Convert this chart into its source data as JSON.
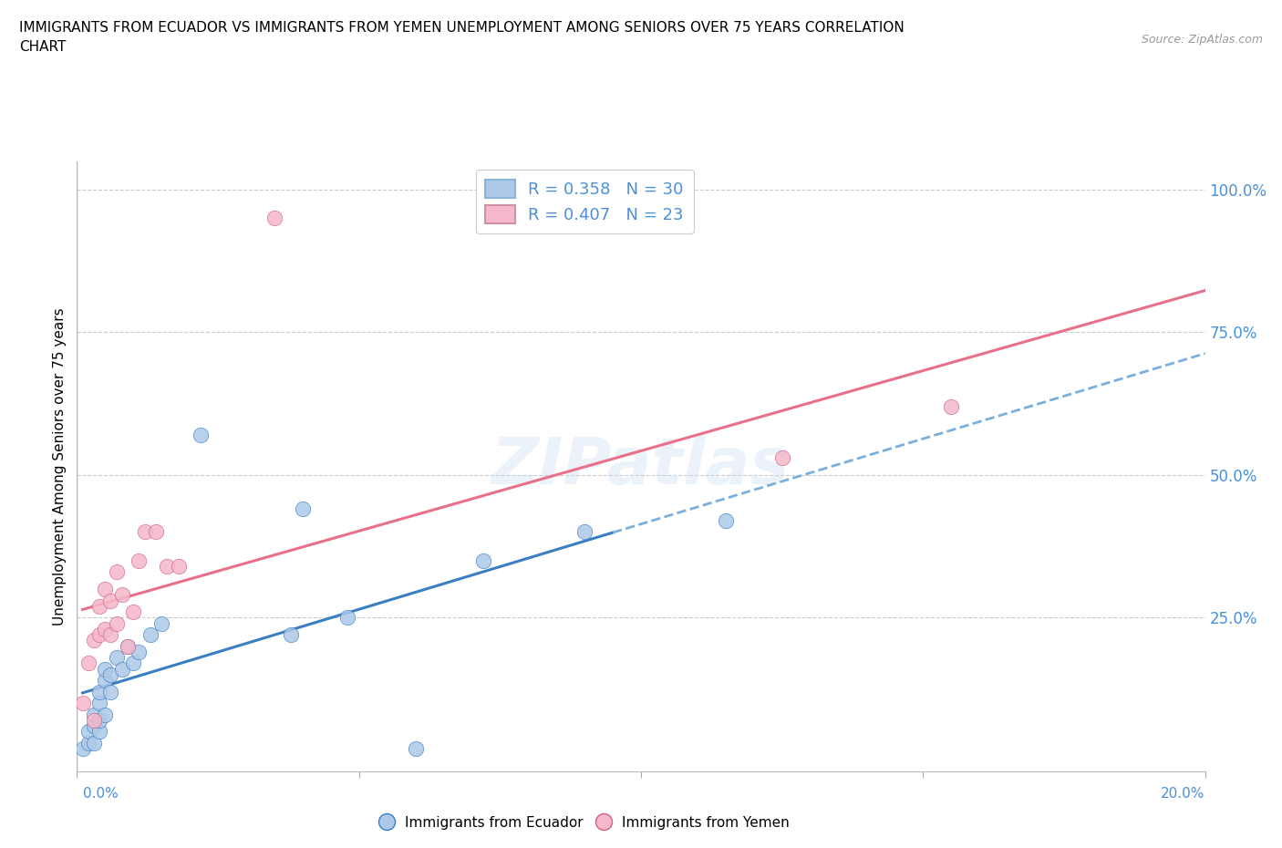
{
  "title_line1": "IMMIGRANTS FROM ECUADOR VS IMMIGRANTS FROM YEMEN UNEMPLOYMENT AMONG SENIORS OVER 75 YEARS CORRELATION",
  "title_line2": "CHART",
  "source": "Source: ZipAtlas.com",
  "ylabel": "Unemployment Among Seniors over 75 years",
  "legend_ecuador": "R = 0.358   N = 30",
  "legend_yemen": "R = 0.407   N = 23",
  "ecuador_color": "#adc8e8",
  "yemen_color": "#f5b8cb",
  "ecuador_line_color": "#3a7fc1",
  "yemen_line_color": "#e8708a",
  "dashed_line_color": "#7ab0de",
  "xlim": [
    0.0,
    0.2
  ],
  "ylim": [
    -0.02,
    1.05
  ],
  "ecuador_scatter_x": [
    0.001,
    0.002,
    0.002,
    0.003,
    0.003,
    0.003,
    0.004,
    0.004,
    0.004,
    0.004,
    0.005,
    0.005,
    0.005,
    0.006,
    0.006,
    0.007,
    0.008,
    0.009,
    0.01,
    0.011,
    0.013,
    0.015,
    0.022,
    0.038,
    0.04,
    0.048,
    0.06,
    0.072,
    0.09,
    0.115
  ],
  "ecuador_scatter_y": [
    0.02,
    0.03,
    0.05,
    0.03,
    0.06,
    0.08,
    0.05,
    0.07,
    0.1,
    0.12,
    0.08,
    0.14,
    0.16,
    0.12,
    0.15,
    0.18,
    0.16,
    0.2,
    0.17,
    0.19,
    0.22,
    0.24,
    0.57,
    0.22,
    0.44,
    0.25,
    0.02,
    0.35,
    0.4,
    0.42
  ],
  "yemen_scatter_x": [
    0.001,
    0.002,
    0.003,
    0.003,
    0.004,
    0.004,
    0.005,
    0.005,
    0.006,
    0.006,
    0.007,
    0.007,
    0.008,
    0.009,
    0.01,
    0.011,
    0.012,
    0.014,
    0.016,
    0.018,
    0.035,
    0.125,
    0.155
  ],
  "yemen_scatter_y": [
    0.1,
    0.17,
    0.07,
    0.21,
    0.22,
    0.27,
    0.23,
    0.3,
    0.22,
    0.28,
    0.24,
    0.33,
    0.29,
    0.2,
    0.26,
    0.35,
    0.4,
    0.4,
    0.34,
    0.34,
    0.95,
    0.53,
    0.62
  ],
  "ecuador_line_x_end_solid": 0.095,
  "yemen_line_x_start": 0.001,
  "yemen_line_x_end": 0.2,
  "x_tick_positions": [
    0.0,
    0.05,
    0.1,
    0.15,
    0.2
  ],
  "ytick_positions": [
    0.0,
    0.25,
    0.5,
    0.75,
    1.0
  ],
  "ytick_labels": [
    "",
    "25.0%",
    "50.0%",
    "75.0%",
    "100.0%"
  ]
}
